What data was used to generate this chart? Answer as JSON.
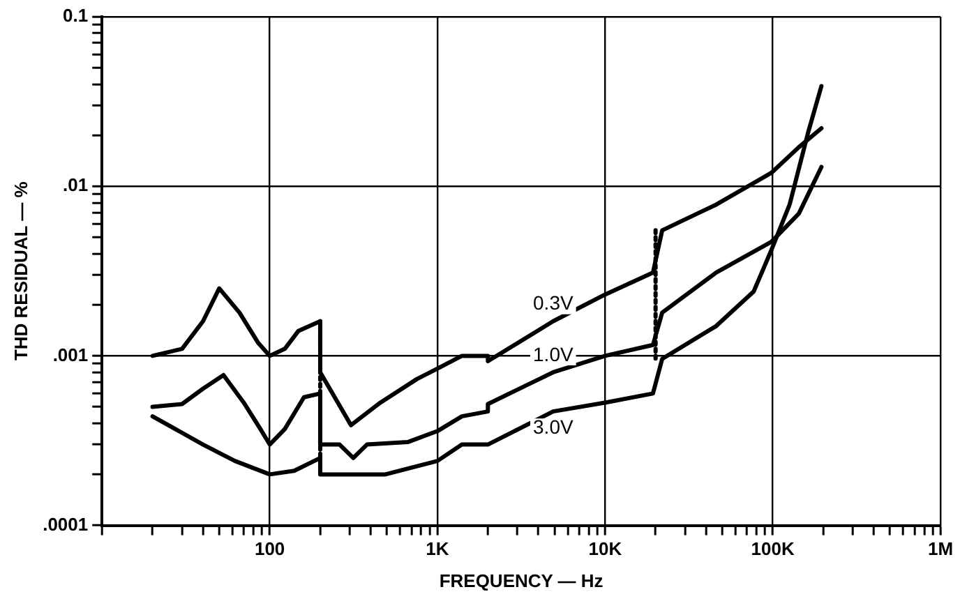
{
  "chart_data": {
    "type": "line",
    "xlabel": "FREQUENCY — Hz",
    "ylabel": "THD RESIDUAL — %",
    "log": "xy",
    "grid": true,
    "legend": false,
    "marker": "none",
    "line_style": "solid",
    "xlim": [
      10,
      1000000
    ],
    "ylim": [
      0.0001,
      0.1
    ],
    "xticks": [
      {
        "value": 10,
        "label": null
      },
      {
        "value": 20,
        "label": null
      },
      {
        "value": 30,
        "label": null
      },
      {
        "value": 40,
        "label": null
      },
      {
        "value": 50,
        "label": null
      },
      {
        "value": 60,
        "label": null
      },
      {
        "value": 70,
        "label": null
      },
      {
        "value": 80,
        "label": null
      },
      {
        "value": 90,
        "label": null
      },
      {
        "value": 100,
        "label": "100"
      },
      {
        "value": 200,
        "label": null
      },
      {
        "value": 300,
        "label": null
      },
      {
        "value": 400,
        "label": null
      },
      {
        "value": 500,
        "label": null
      },
      {
        "value": 600,
        "label": null
      },
      {
        "value": 700,
        "label": null
      },
      {
        "value": 800,
        "label": null
      },
      {
        "value": 900,
        "label": null
      },
      {
        "value": 1000,
        "label": "1K"
      },
      {
        "value": 2000,
        "label": null
      },
      {
        "value": 3000,
        "label": null
      },
      {
        "value": 4000,
        "label": null
      },
      {
        "value": 5000,
        "label": null
      },
      {
        "value": 6000,
        "label": null
      },
      {
        "value": 7000,
        "label": null
      },
      {
        "value": 8000,
        "label": null
      },
      {
        "value": 9000,
        "label": null
      },
      {
        "value": 10000,
        "label": "10K"
      },
      {
        "value": 20000,
        "label": null
      },
      {
        "value": 30000,
        "label": null
      },
      {
        "value": 40000,
        "label": null
      },
      {
        "value": 50000,
        "label": null
      },
      {
        "value": 60000,
        "label": null
      },
      {
        "value": 70000,
        "label": null
      },
      {
        "value": 80000,
        "label": null
      },
      {
        "value": 90000,
        "label": null
      },
      {
        "value": 100000,
        "label": "100K"
      },
      {
        "value": 200000,
        "label": null
      },
      {
        "value": 300000,
        "label": null
      },
      {
        "value": 400000,
        "label": null
      },
      {
        "value": 500000,
        "label": null
      },
      {
        "value": 600000,
        "label": null
      },
      {
        "value": 700000,
        "label": null
      },
      {
        "value": 800000,
        "label": null
      },
      {
        "value": 900000,
        "label": null
      },
      {
        "value": 1000000,
        "label": "1M"
      }
    ],
    "yticks": [
      {
        "value": 0.0001,
        "label": ".0001"
      },
      {
        "value": 0.0002,
        "label": null
      },
      {
        "value": 0.0003,
        "label": null
      },
      {
        "value": 0.0004,
        "label": null
      },
      {
        "value": 0.0005,
        "label": null
      },
      {
        "value": 0.0006,
        "label": null
      },
      {
        "value": 0.0007,
        "label": null
      },
      {
        "value": 0.0008,
        "label": null
      },
      {
        "value": 0.0009,
        "label": null
      },
      {
        "value": 0.001,
        "label": ".001"
      },
      {
        "value": 0.002,
        "label": null
      },
      {
        "value": 0.003,
        "label": null
      },
      {
        "value": 0.004,
        "label": null
      },
      {
        "value": 0.005,
        "label": null
      },
      {
        "value": 0.006,
        "label": null
      },
      {
        "value": 0.007,
        "label": null
      },
      {
        "value": 0.008,
        "label": null
      },
      {
        "value": 0.009,
        "label": null
      },
      {
        "value": 0.01,
        "label": ".01"
      },
      {
        "value": 0.02,
        "label": null
      },
      {
        "value": 0.03,
        "label": null
      },
      {
        "value": 0.04,
        "label": null
      },
      {
        "value": 0.05,
        "label": null
      },
      {
        "value": 0.06,
        "label": null
      },
      {
        "value": 0.07,
        "label": null
      },
      {
        "value": 0.08,
        "label": null
      },
      {
        "value": 0.09,
        "label": null
      },
      {
        "value": 0.1,
        "label": "0.1"
      }
    ],
    "series": [
      {
        "name": "0.3V",
        "color": "#000000",
        "x": [
          20,
          30,
          40,
          50,
          66,
          85,
          100,
          123,
          148,
          200,
          200,
          305,
          457,
          755,
          1020,
          1400,
          2000,
          2000,
          4900,
          10000,
          19300,
          21900,
          46000,
          98000,
          143000,
          195000
        ],
        "values": [
          0.001,
          0.0011,
          0.0016,
          0.0025,
          0.0018,
          0.0012,
          0.001,
          0.0011,
          0.0014,
          0.0016,
          0.0008,
          0.00039,
          0.00053,
          0.00073,
          0.00085,
          0.001,
          0.001,
          0.00093,
          0.0016,
          0.0023,
          0.0031,
          0.0055,
          0.0078,
          0.012,
          0.017,
          0.022
        ]
      },
      {
        "name": "1.0V",
        "color": "#000000",
        "x": [
          20,
          30,
          40,
          53,
          70,
          88,
          100,
          123,
          160,
          200,
          200,
          261,
          315,
          380,
          665,
          1000,
          1400,
          2000,
          2000,
          4900,
          10000,
          19300,
          21900,
          46000,
          98000,
          143000,
          195000
        ],
        "values": [
          0.0005,
          0.00052,
          0.00064,
          0.00077,
          0.00053,
          0.00037,
          0.0003,
          0.00037,
          0.00057,
          0.0006,
          0.0003,
          0.0003,
          0.00025,
          0.0003,
          0.00031,
          0.00036,
          0.00044,
          0.00047,
          0.00052,
          0.0008,
          0.001,
          0.00116,
          0.0018,
          0.0031,
          0.0047,
          0.0069,
          0.013
        ]
      },
      {
        "name": "3.0V",
        "color": "#000000",
        "x": [
          20,
          40,
          62,
          100,
          140,
          200,
          200,
          490,
          1000,
          1400,
          2000,
          4900,
          10000,
          19300,
          21900,
          46000,
          77000,
          98000,
          126000,
          163000,
          195000
        ],
        "values": [
          0.00044,
          0.0003,
          0.00024,
          0.0002,
          0.00021,
          0.00025,
          0.0002,
          0.0002,
          0.00024,
          0.0003,
          0.0003,
          0.00047,
          0.00053,
          0.0006,
          0.00096,
          0.0015,
          0.0024,
          0.0042,
          0.0078,
          0.021,
          0.039
        ]
      },
      {
        "color": "#000000",
        "line_style": "dotted",
        "x": [
          200,
          200
        ],
        "values": [
          0.0016,
          0.0002
        ]
      },
      {
        "color": "#000000",
        "line_style": "dotted",
        "x": [
          20000,
          20000
        ],
        "values": [
          0.0055,
          0.00093
        ]
      }
    ]
  }
}
